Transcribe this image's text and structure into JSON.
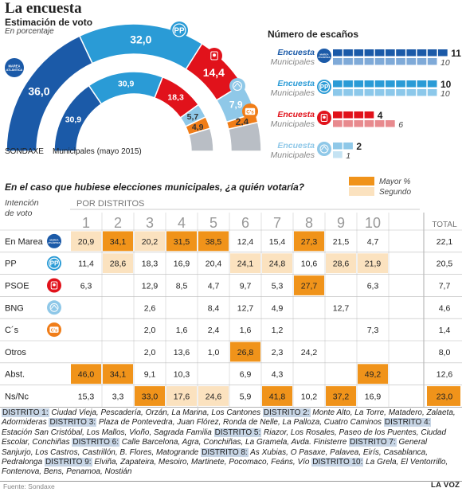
{
  "header": {
    "title": "La encuesta",
    "subtitle": "Estimación de voto",
    "subtitle2": "En porcentaje"
  },
  "colors": {
    "marea": "#1b5aa8",
    "pp": "#2a9bd6",
    "psoe": "#e1121b",
    "bng": "#8fc8e8",
    "cs": "#f07d18",
    "otros": "#b9bec5",
    "mayor": "#f0931a",
    "segundo": "#fbe2bf"
  },
  "chart_data": [
    {
      "type": "pie",
      "subtype": "semicircle-donut",
      "series": [
        {
          "name": "SONDAXE",
          "values": [
            36.0,
            32.0,
            14.4,
            7.9,
            2.4
          ]
        },
        {
          "name": "Municipales (mayo 2015)",
          "values": [
            30.9,
            30.9,
            18.3,
            5.7,
            4.9
          ]
        }
      ],
      "categories": [
        "Marea Atlántica",
        "PP",
        "PSOE",
        "BNG",
        "C's"
      ],
      "labels": [
        [
          "36,0",
          "32,0",
          "14,4",
          "7,9",
          "2,4"
        ],
        [
          "30,9",
          "30,9",
          "18,3",
          "5,7",
          "4,9"
        ]
      ],
      "xlabel_left": "SONDAXE",
      "xlabel_right": "Municipales (mayo  2015)"
    },
    {
      "type": "bar",
      "title": "Número de escaños",
      "categories": [
        "Marea Atlántica",
        "PP",
        "PSOE",
        "BNG"
      ],
      "series": [
        {
          "name": "Encuesta",
          "values": [
            11,
            10,
            4,
            2
          ]
        },
        {
          "name": "Municipales",
          "values": [
            10,
            10,
            6,
            1
          ]
        }
      ],
      "labels_encuesta": [
        "Encuesta",
        "Encuesta",
        "Encuesta",
        "Encuesta"
      ],
      "labels_municipales": [
        "Municipales",
        "Municipales",
        "Municipales",
        "Municipales"
      ]
    },
    {
      "type": "table",
      "title": "En el caso que hubiese elecciones municipales, ¿a quién votaría?",
      "corner_label": [
        "Intención",
        "de voto"
      ],
      "group_label": "POR DISTRITOS",
      "columns": [
        "1",
        "2",
        "3",
        "4",
        "5",
        "6",
        "7",
        "8",
        "9",
        "10"
      ],
      "total_label": "TOTAL",
      "legend": [
        "Mayor %",
        "Segundo"
      ],
      "rows": [
        {
          "label": "En Marea",
          "icon": "marea",
          "values": [
            "20,9",
            "34,1",
            "20,2",
            "31,5",
            "38,5",
            "12,4",
            "15,4",
            "27,3",
            "21,5",
            "4,7"
          ],
          "total": "22,1",
          "hl": [
            "s",
            "m",
            "s",
            "m",
            "m",
            "",
            "",
            "m",
            "",
            ""
          ]
        },
        {
          "label": "PP",
          "icon": "pp",
          "values": [
            "11,4",
            "28,6",
            "18,3",
            "16,9",
            "20,4",
            "24,1",
            "24,8",
            "10,6",
            "28,6",
            "21,9"
          ],
          "total": "20,5",
          "hl": [
            "",
            "s",
            "",
            "",
            "",
            "s",
            "s",
            "",
            "s",
            "s"
          ]
        },
        {
          "label": "PSOE",
          "icon": "psoe",
          "values": [
            "6,3",
            "",
            "12,9",
            "8,5",
            "4,7",
            "9,7",
            "5,3",
            "27,7",
            "",
            "6,3"
          ],
          "total": "7,7",
          "hl": [
            "",
            "",
            "",
            "",
            "",
            "",
            "",
            "m",
            "",
            ""
          ]
        },
        {
          "label": "BNG",
          "icon": "bng",
          "values": [
            "",
            "",
            "2,6",
            "",
            "8,4",
            "12,7",
            "4,9",
            "",
            "12,7",
            ""
          ],
          "total": "4,6",
          "hl": [
            "",
            "",
            "",
            "",
            "",
            "",
            "",
            "",
            "",
            ""
          ]
        },
        {
          "label": "C´s",
          "icon": "cs",
          "values": [
            "",
            "",
            "2,0",
            "1,6",
            "2,4",
            "1,6",
            "1,2",
            "",
            "",
            "7,3"
          ],
          "total": "1,4",
          "hl": [
            "",
            "",
            "",
            "",
            "",
            "",
            "",
            "",
            "",
            ""
          ]
        },
        {
          "label": "Otros",
          "icon": "",
          "values": [
            "",
            "",
            "2,0",
            "13,6",
            "1,0",
            "26,8",
            "2,3",
            "24,2",
            "",
            ""
          ],
          "total": "8,0",
          "hl": [
            "",
            "",
            "",
            "",
            "",
            "m",
            "",
            "",
            "",
            ""
          ]
        },
        {
          "label": "Abst.",
          "icon": "",
          "values": [
            "46,0",
            "34,1",
            "9,1",
            "10,3",
            "",
            "6,9",
            "4,3",
            "",
            "",
            "49,2"
          ],
          "total": "12,6",
          "hl": [
            "m",
            "m",
            "",
            "",
            "",
            "",
            "",
            "",
            "",
            "m"
          ]
        },
        {
          "label": "Ns/Nc",
          "icon": "",
          "values": [
            "15,3",
            "3,3",
            "33,0",
            "17,6",
            "24,6",
            "5,9",
            "41,8",
            "10,2",
            "37,2",
            "16,9"
          ],
          "total": "23,0",
          "hl": [
            "",
            "",
            "m",
            "s",
            "s",
            "",
            "m",
            "",
            "m",
            ""
          ],
          "total_hl": "m"
        }
      ]
    }
  ],
  "districts": [
    {
      "tag": "DISTRITO 1:",
      "text": " Ciudad Vieja, Pescadería, Orzán, La Marina, Los Cantones "
    },
    {
      "tag": "DISTRITO 2:",
      "text": " Monte Alto, La Torre, Matadero, Zalaeta, Adormideras "
    },
    {
      "tag": "DISTRITO 3:",
      "text": " Plaza de Pontevedra, Juan Flórez, Ronda de Nelle, La Palloza, Cuatro Caminos "
    },
    {
      "tag": "DISTRITO 4:",
      "text": " Estación San Cristóbal, Los Mallos, Vioño, Sagrada Familia "
    },
    {
      "tag": "DISTRITO 5:",
      "text": " Riazor, Los Rosales, Paseo de los Puentes, Ciudad Escolar, Conchiñas "
    },
    {
      "tag": "DISTRITO 6:",
      "text": " Calle Barcelona, Agra, Conchiñas, La Gramela, Avda. Finisterre "
    },
    {
      "tag": "DISTRITO 7:",
      "text": " General Sanjurjo, Los Castros, Castrillón, B. Flores, Matogrande "
    },
    {
      "tag": "DISTRITO 8:",
      "text": " As Xubias, O Pasaxe, Palavea, Eirís, Casablanca, Pedralonga "
    },
    {
      "tag": "DISTRITO 9:",
      "text": " Elviña, Zapateira, Mesoiro, Martinete, Pocomaco, Feáns, Vío "
    },
    {
      "tag": "DISTRITO 10:",
      "text": " La Grela, El Ventorrillo, Fontenova, Bens, Penamoa, Nostián"
    }
  ],
  "footer": {
    "source": "Fuente: Sondaxe",
    "brand": "LA VOZ"
  }
}
